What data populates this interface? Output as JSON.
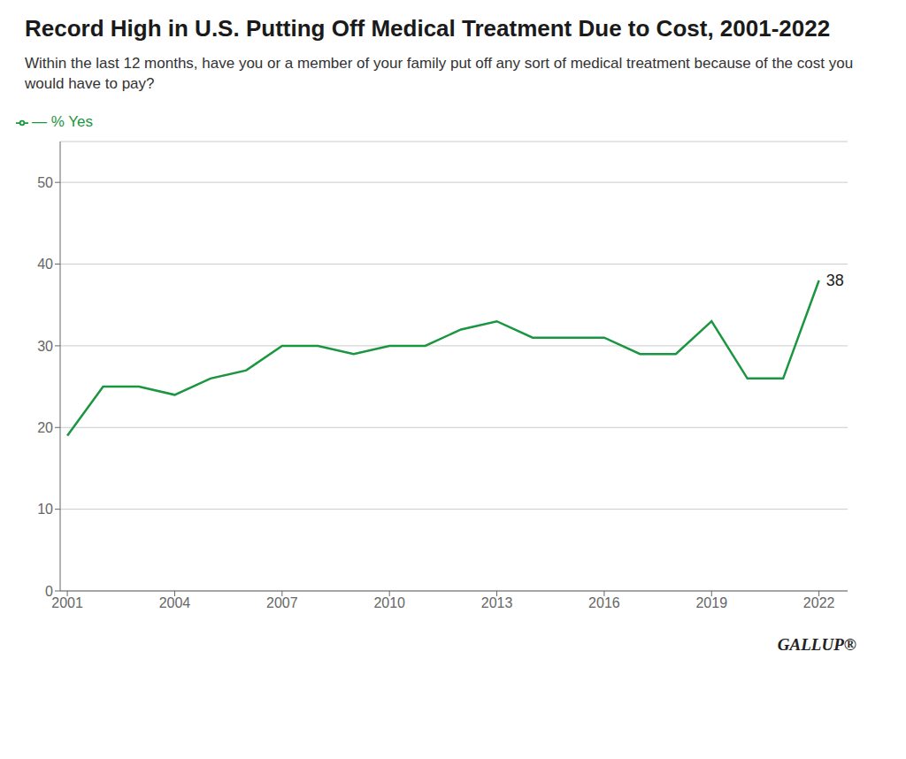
{
  "chart_data": {
    "type": "line",
    "title": "Record High in U.S. Putting Off Medical Treatment Due to Cost, 2001-2022",
    "subtitle": "Within the last 12 months, have you or a member of your family put off any sort of medical treatment because of the cost you would have to pay?",
    "x": [
      2001,
      2002,
      2003,
      2004,
      2005,
      2006,
      2007,
      2008,
      2009,
      2010,
      2011,
      2012,
      2013,
      2014,
      2015,
      2016,
      2017,
      2018,
      2019,
      2020,
      2021,
      2022
    ],
    "series": [
      {
        "name": "— % Yes",
        "color": "#1a9641",
        "values": [
          19,
          25,
          25,
          24,
          26,
          27,
          30,
          30,
          29,
          30,
          30,
          32,
          33,
          31,
          31,
          31,
          29,
          29,
          33,
          26,
          26,
          38
        ]
      }
    ],
    "xlim": [
      2000.8,
      2022.8
    ],
    "xticks": [
      2001,
      2004,
      2007,
      2010,
      2013,
      2016,
      2019,
      2022
    ],
    "ylim": [
      0,
      55
    ],
    "yticks": [
      0,
      10,
      20,
      30,
      40,
      50
    ],
    "grid": true,
    "legend": "upper left",
    "annotations": [
      {
        "text": "38",
        "x": 2022,
        "y": 38
      },
      {
        "text": "GALLUP®"
      }
    ]
  }
}
